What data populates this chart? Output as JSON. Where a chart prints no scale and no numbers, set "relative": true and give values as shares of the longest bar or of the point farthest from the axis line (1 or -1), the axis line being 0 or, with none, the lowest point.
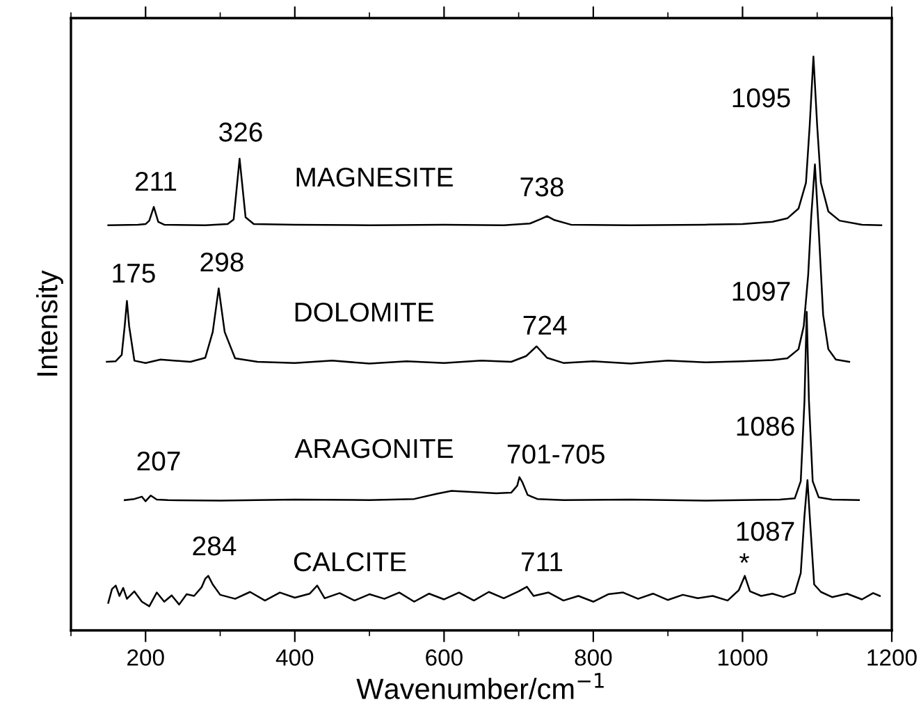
{
  "chart_data": {
    "type": "line",
    "relative": true,
    "xlabel": "Wavenumber/cm$^{−1}$",
    "ylabel": "Intensity",
    "xlim": [
      100,
      1200
    ],
    "xticks": [
      {
        "value": 100,
        "label": null
      },
      200,
      {
        "value": 300,
        "label": null
      },
      400,
      {
        "value": 500,
        "label": null
      },
      600,
      {
        "value": 700,
        "label": null
      },
      800,
      {
        "value": 900,
        "label": null
      },
      1000,
      {
        "value": 1100,
        "label": null
      },
      1200
    ],
    "grid": false,
    "marker": "none",
    "line_style": "solid",
    "series": [
      {
        "color": "#000000",
        "x": [
          150,
          190,
          200,
          205,
          211,
          217,
          225,
          280,
          310,
          318,
          326,
          334,
          345,
          400,
          500,
          600,
          680,
          715,
          730,
          738,
          748,
          770,
          850,
          950,
          1000,
          1040,
          1060,
          1075,
          1085,
          1090,
          1095,
          1100,
          1105,
          1115,
          1130,
          1160,
          1186
        ],
        "values": [
          0.706,
          0.707,
          0.708,
          0.714,
          0.738,
          0.712,
          0.707,
          0.706,
          0.708,
          0.716,
          0.822,
          0.72,
          0.708,
          0.707,
          0.706,
          0.707,
          0.706,
          0.709,
          0.717,
          0.722,
          0.715,
          0.707,
          0.706,
          0.707,
          0.708,
          0.712,
          0.718,
          0.735,
          0.78,
          0.88,
          1.0,
          0.88,
          0.78,
          0.73,
          0.714,
          0.707,
          0.706
        ]
      },
      {
        "color": "#000000",
        "x": [
          148,
          160,
          168,
          172,
          175,
          178,
          185,
          200,
          220,
          260,
          280,
          290,
          298,
          306,
          320,
          350,
          400,
          450,
          500,
          550,
          600,
          650,
          690,
          710,
          724,
          738,
          760,
          800,
          850,
          900,
          950,
          1000,
          1040,
          1060,
          1075,
          1082,
          1088,
          1092,
          1097,
          1102,
          1108,
          1115,
          1125,
          1143
        ],
        "values": [
          0.468,
          0.469,
          0.48,
          0.53,
          0.574,
          0.53,
          0.47,
          0.466,
          0.472,
          0.468,
          0.475,
          0.52,
          0.596,
          0.52,
          0.474,
          0.468,
          0.466,
          0.47,
          0.465,
          0.469,
          0.466,
          0.47,
          0.468,
          0.478,
          0.495,
          0.475,
          0.466,
          0.469,
          0.465,
          0.47,
          0.467,
          0.469,
          0.471,
          0.474,
          0.49,
          0.53,
          0.62,
          0.72,
          0.812,
          0.7,
          0.55,
          0.49,
          0.472,
          0.468
        ]
      },
      {
        "color": "#000000",
        "x": [
          172,
          185,
          195,
          200,
          207,
          215,
          230,
          300,
          400,
          500,
          560,
          590,
          610,
          640,
          670,
          690,
          698,
          701,
          705,
          712,
          725,
          760,
          850,
          950,
          1000,
          1050,
          1070,
          1078,
          1083,
          1086,
          1089,
          1094,
          1102,
          1120,
          1156
        ],
        "values": [
          0.227,
          0.229,
          0.233,
          0.225,
          0.235,
          0.228,
          0.227,
          0.226,
          0.228,
          0.227,
          0.229,
          0.238,
          0.243,
          0.241,
          0.239,
          0.24,
          0.252,
          0.267,
          0.258,
          0.236,
          0.229,
          0.227,
          0.228,
          0.226,
          0.227,
          0.228,
          0.23,
          0.26,
          0.4,
          0.555,
          0.4,
          0.26,
          0.232,
          0.228,
          0.227
        ]
      },
      {
        "color": "#000000",
        "x": [
          150,
          155,
          160,
          165,
          170,
          175,
          185,
          195,
          205,
          215,
          225,
          235,
          245,
          255,
          265,
          275,
          280,
          284,
          290,
          300,
          320,
          340,
          360,
          380,
          400,
          420,
          430,
          440,
          460,
          480,
          500,
          520,
          540,
          560,
          580,
          600,
          620,
          640,
          660,
          680,
          700,
          711,
          720,
          740,
          760,
          780,
          800,
          820,
          840,
          860,
          880,
          900,
          920,
          940,
          960,
          980,
          995,
          1003,
          1010,
          1025,
          1040,
          1055,
          1070,
          1078,
          1083,
          1087,
          1091,
          1096,
          1105,
          1120,
          1140,
          1160,
          1175,
          1184
        ],
        "values": [
          0.048,
          0.072,
          0.078,
          0.06,
          0.074,
          0.055,
          0.068,
          0.05,
          0.042,
          0.066,
          0.05,
          0.061,
          0.045,
          0.063,
          0.06,
          0.075,
          0.09,
          0.095,
          0.08,
          0.062,
          0.055,
          0.067,
          0.052,
          0.066,
          0.057,
          0.064,
          0.078,
          0.056,
          0.065,
          0.052,
          0.063,
          0.055,
          0.066,
          0.05,
          0.064,
          0.054,
          0.066,
          0.052,
          0.067,
          0.056,
          0.068,
          0.076,
          0.06,
          0.066,
          0.052,
          0.06,
          0.05,
          0.063,
          0.066,
          0.055,
          0.064,
          0.053,
          0.062,
          0.056,
          0.06,
          0.052,
          0.07,
          0.095,
          0.068,
          0.06,
          0.064,
          0.058,
          0.065,
          0.1,
          0.2,
          0.262,
          0.18,
          0.08,
          0.067,
          0.058,
          0.064,
          0.054,
          0.065,
          0.06
        ]
      }
    ],
    "annotations": [
      "211",
      "326",
      "MAGNESITE",
      "738",
      "1095",
      "175",
      "298",
      "DOLOMITE",
      "724",
      "1097",
      "207",
      "ARAGONITE",
      "701-705",
      "1086",
      "284",
      "CALCITE",
      "711",
      "*",
      "1087"
    ]
  }
}
